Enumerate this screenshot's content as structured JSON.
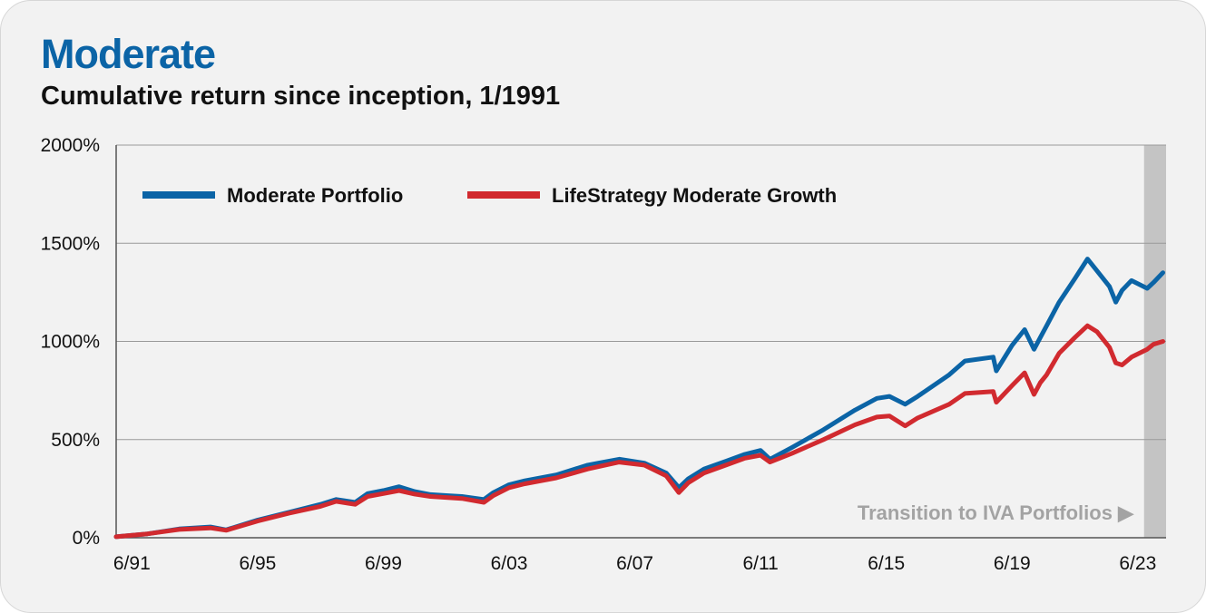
{
  "header": {
    "title": "Moderate",
    "subtitle": "Cumulative return since inception, 1/1991"
  },
  "colors": {
    "title": "#0b64a6",
    "moderate_portfolio": "#0b64a6",
    "lifestrategy": "#d12a2f",
    "shade": "#c4c4c4",
    "annotation": "#a3a3a3"
  },
  "chart_data": {
    "type": "line",
    "xlabel": "",
    "ylabel": "",
    "xlim": [
      1991.0,
      2024.4
    ],
    "ylim": [
      0,
      2000
    ],
    "grid": true,
    "legend_position": "top-left",
    "y_ticks": [
      {
        "value": 0,
        "label": "0%"
      },
      {
        "value": 500,
        "label": "500%"
      },
      {
        "value": 1000,
        "label": "1000%"
      },
      {
        "value": 1500,
        "label": "1500%"
      },
      {
        "value": 2000,
        "label": "2000%"
      }
    ],
    "x_ticks": [
      {
        "value": 1991.5,
        "label": "6/91"
      },
      {
        "value": 1995.5,
        "label": "6/95"
      },
      {
        "value": 1999.5,
        "label": "6/99"
      },
      {
        "value": 2003.5,
        "label": "6/03"
      },
      {
        "value": 2007.5,
        "label": "6/07"
      },
      {
        "value": 2011.5,
        "label": "6/11"
      },
      {
        "value": 2015.5,
        "label": "6/15"
      },
      {
        "value": 2019.5,
        "label": "6/19"
      },
      {
        "value": 2023.5,
        "label": "6/23"
      }
    ],
    "shaded_region": {
      "from": 2023.7,
      "to": 2024.4
    },
    "annotation": "Transition to IVA Portfolios ▶",
    "series": [
      {
        "name": "Moderate Portfolio",
        "color": "#0b64a6",
        "x": [
          1991.0,
          1992.0,
          1993.0,
          1994.0,
          1994.5,
          1995.5,
          1996.5,
          1997.5,
          1998.0,
          1998.6,
          1999.0,
          1999.5,
          2000.0,
          2000.5,
          2001.0,
          2001.5,
          2002.0,
          2002.7,
          2003.0,
          2003.5,
          2004.0,
          2005.0,
          2006.0,
          2007.0,
          2007.8,
          2008.5,
          2008.9,
          2009.2,
          2009.7,
          2010.4,
          2011.0,
          2011.5,
          2011.8,
          2012.5,
          2013.5,
          2014.5,
          2015.2,
          2015.6,
          2016.1,
          2016.5,
          2017.5,
          2018.0,
          2018.9,
          2019.0,
          2019.5,
          2019.9,
          2020.2,
          2020.4,
          2020.6,
          2021.0,
          2021.5,
          2021.9,
          2022.2,
          2022.6,
          2022.8,
          2023.0,
          2023.3,
          2023.8,
          2024.0,
          2024.3
        ],
        "y": [
          5,
          20,
          45,
          55,
          40,
          90,
          130,
          170,
          195,
          180,
          225,
          240,
          260,
          235,
          220,
          215,
          210,
          195,
          230,
          270,
          290,
          320,
          370,
          400,
          380,
          330,
          255,
          300,
          350,
          390,
          425,
          445,
          400,
          460,
          550,
          650,
          710,
          720,
          680,
          720,
          830,
          900,
          920,
          850,
          980,
          1060,
          960,
          1020,
          1080,
          1200,
          1320,
          1420,
          1360,
          1280,
          1200,
          1260,
          1310,
          1270,
          1300,
          1350
        ]
      },
      {
        "name": "LifeStrategy Moderate Growth",
        "color": "#d12a2f",
        "x": [
          1991.0,
          1992.0,
          1993.0,
          1994.0,
          1994.5,
          1995.5,
          1996.5,
          1997.5,
          1998.0,
          1998.6,
          1999.0,
          1999.5,
          2000.0,
          2000.5,
          2001.0,
          2001.5,
          2002.0,
          2002.7,
          2003.0,
          2003.5,
          2004.0,
          2005.0,
          2006.0,
          2007.0,
          2007.8,
          2008.5,
          2008.9,
          2009.2,
          2009.7,
          2010.4,
          2011.0,
          2011.5,
          2011.8,
          2012.5,
          2013.5,
          2014.5,
          2015.2,
          2015.6,
          2016.1,
          2016.5,
          2017.5,
          2018.0,
          2018.9,
          2019.0,
          2019.5,
          2019.9,
          2020.2,
          2020.4,
          2020.6,
          2021.0,
          2021.5,
          2021.9,
          2022.2,
          2022.6,
          2022.8,
          2023.0,
          2023.3,
          2023.8,
          2024.0,
          2024.3
        ],
        "y": [
          5,
          20,
          42,
          50,
          38,
          85,
          125,
          160,
          185,
          170,
          210,
          225,
          240,
          222,
          210,
          205,
          200,
          180,
          215,
          255,
          275,
          305,
          350,
          385,
          370,
          315,
          230,
          280,
          330,
          370,
          405,
          420,
          385,
          430,
          500,
          575,
          615,
          620,
          570,
          610,
          680,
          735,
          745,
          690,
          775,
          840,
          730,
          790,
          830,
          940,
          1020,
          1080,
          1050,
          970,
          890,
          880,
          920,
          960,
          985,
          1000
        ]
      }
    ]
  }
}
